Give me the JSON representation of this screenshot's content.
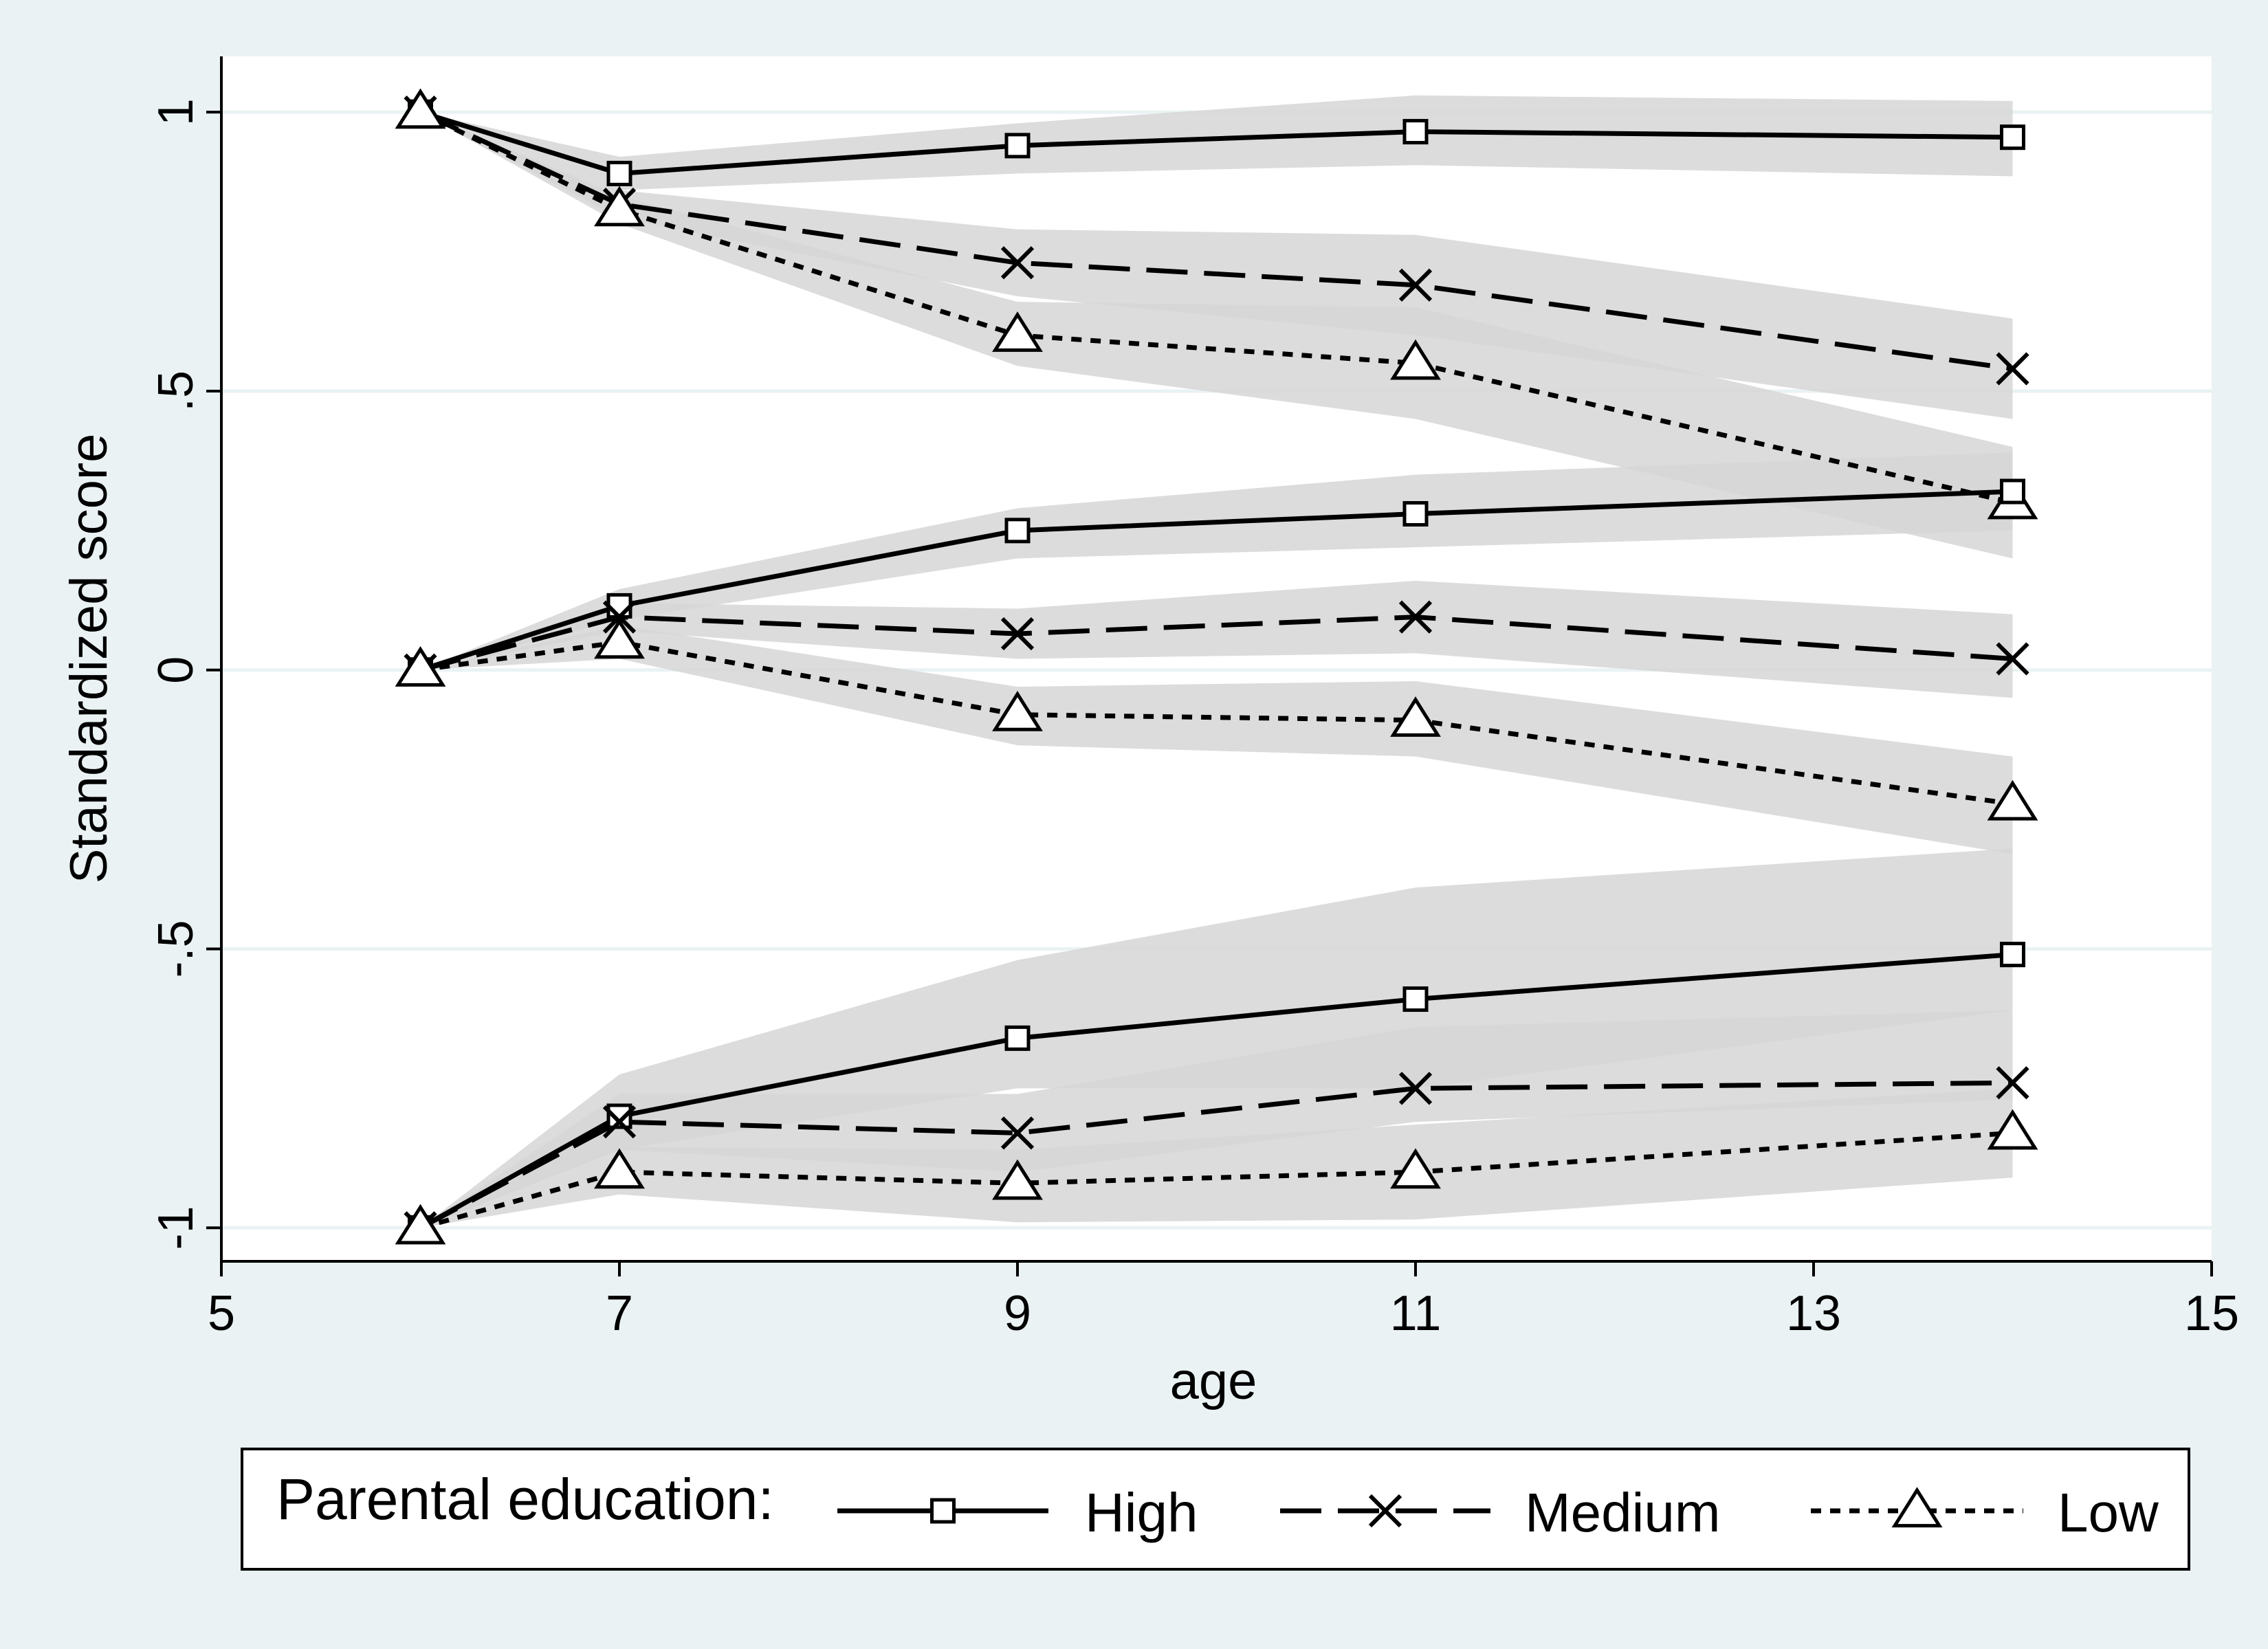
{
  "chart_data": {
    "type": "line",
    "xlabel": "age",
    "ylabel": "Standardized score",
    "xlim": [
      5,
      15
    ],
    "ylim": [
      -1.06,
      1.1
    ],
    "xticks": [
      5,
      7,
      9,
      11,
      13,
      15
    ],
    "xtick_labels": [
      "5",
      "7",
      "9",
      "11",
      "13",
      "15"
    ],
    "yticks": [
      -1,
      -0.5,
      0,
      0.5,
      1
    ],
    "ytick_labels": [
      "-1",
      "-.5",
      "0",
      ".5",
      "1"
    ],
    "grid": "horizontal",
    "legend": {
      "position": "bottom",
      "title": "Parental education:",
      "entries": [
        "High",
        "Medium",
        "Low"
      ]
    },
    "x": [
      6,
      7,
      9,
      11,
      14
    ],
    "series": [
      {
        "name": "High",
        "group": "top",
        "marker": "square",
        "dash": "solid",
        "values": [
          1.0,
          0.89,
          0.94,
          0.965,
          0.955
        ],
        "ci_low": [
          1.0,
          0.86,
          0.89,
          0.905,
          0.885
        ],
        "ci_high": [
          1.0,
          0.92,
          0.98,
          1.03,
          1.02
        ]
      },
      {
        "name": "Medium",
        "group": "top",
        "marker": "x",
        "dash": "long",
        "values": [
          1.0,
          0.835,
          0.73,
          0.69,
          0.54
        ],
        "ci_low": [
          1.0,
          0.81,
          0.67,
          0.6,
          0.45
        ],
        "ci_high": [
          1.0,
          0.86,
          0.79,
          0.78,
          0.63
        ]
      },
      {
        "name": "Low",
        "group": "top",
        "marker": "triangle",
        "dash": "short",
        "values": [
          1.0,
          0.825,
          0.6,
          0.55,
          0.3
        ],
        "ci_low": [
          1.0,
          0.8,
          0.545,
          0.45,
          0.2
        ],
        "ci_high": [
          1.0,
          0.85,
          0.66,
          0.65,
          0.4
        ]
      },
      {
        "name": "High",
        "group": "middle",
        "marker": "square",
        "dash": "solid",
        "values": [
          0.0,
          0.115,
          0.25,
          0.28,
          0.32
        ],
        "ci_low": [
          0.0,
          0.09,
          0.2,
          0.22,
          0.25
        ],
        "ci_high": [
          0.0,
          0.145,
          0.29,
          0.35,
          0.39
        ]
      },
      {
        "name": "Medium",
        "group": "middle",
        "marker": "x",
        "dash": "long",
        "values": [
          0.0,
          0.095,
          0.065,
          0.095,
          0.02
        ],
        "ci_low": [
          0.0,
          0.07,
          0.02,
          0.03,
          -0.05
        ],
        "ci_high": [
          0.0,
          0.12,
          0.11,
          0.16,
          0.1
        ]
      },
      {
        "name": "Low",
        "group": "middle",
        "marker": "triangle",
        "dash": "short",
        "values": [
          0.0,
          0.05,
          -0.08,
          -0.09,
          -0.24
        ],
        "ci_low": [
          0.0,
          0.02,
          -0.135,
          -0.155,
          -0.33
        ],
        "ci_high": [
          0.0,
          0.08,
          -0.03,
          -0.02,
          -0.155
        ]
      },
      {
        "name": "High",
        "group": "bottom",
        "marker": "square",
        "dash": "solid",
        "values": [
          -1.0,
          -0.8,
          -0.66,
          -0.59,
          -0.51
        ],
        "ci_low": [
          -1.0,
          -0.86,
          -0.75,
          -0.75,
          -0.61
        ],
        "ci_high": [
          -1.0,
          -0.725,
          -0.52,
          -0.39,
          -0.32
        ]
      },
      {
        "name": "Medium",
        "group": "bottom",
        "marker": "x",
        "dash": "long",
        "values": [
          -1.0,
          -0.81,
          -0.83,
          -0.75,
          -0.74
        ],
        "ci_low": [
          -1.0,
          -0.86,
          -0.9,
          -0.81,
          -0.77
        ],
        "ci_high": [
          -1.0,
          -0.76,
          -0.76,
          -0.64,
          -0.61
        ]
      },
      {
        "name": "Low",
        "group": "bottom",
        "marker": "triangle",
        "dash": "short",
        "values": [
          -1.0,
          -0.9,
          -0.92,
          -0.9,
          -0.83
        ],
        "ci_low": [
          -1.0,
          -0.94,
          -0.99,
          -0.985,
          -0.91
        ],
        "ci_high": [
          -1.0,
          -0.855,
          -0.86,
          -0.815,
          -0.75
        ]
      }
    ]
  }
}
